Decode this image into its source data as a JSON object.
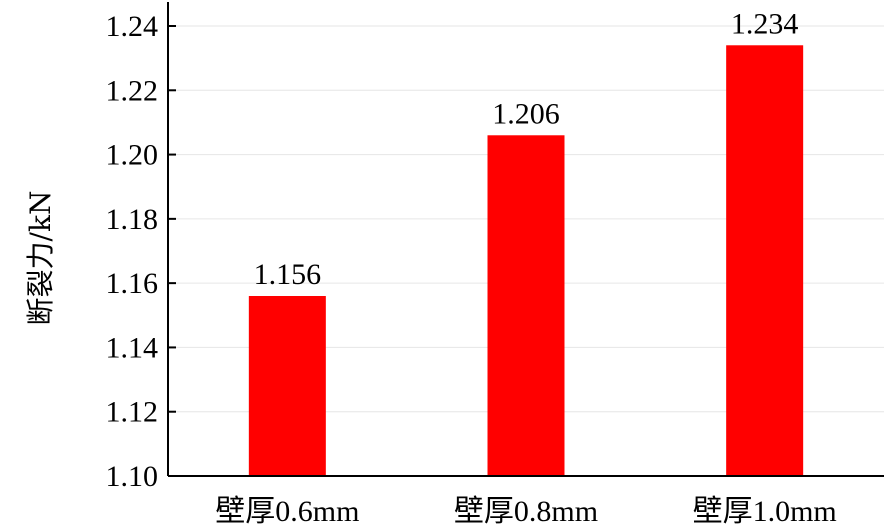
{
  "chart_data": {
    "type": "bar",
    "categories": [
      "壁厚0.6mm",
      "壁厚0.8mm",
      "壁厚1.0mm"
    ],
    "values": [
      1.156,
      1.206,
      1.234
    ],
    "data_labels": [
      "1.156",
      "1.206",
      "1.234"
    ],
    "title": "",
    "xlabel": "",
    "ylabel": "断裂力/kN",
    "ylim": [
      1.1,
      1.24
    ],
    "yticks": [
      "1.10",
      "1.12",
      "1.14",
      "1.16",
      "1.18",
      "1.20",
      "1.22",
      "1.24"
    ],
    "bar_color": "#ff0000",
    "grid": true,
    "legend": "none"
  }
}
